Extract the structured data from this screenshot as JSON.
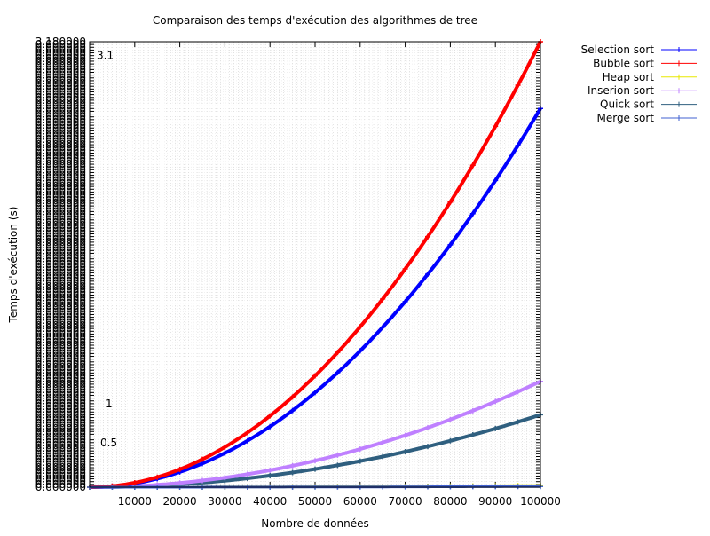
{
  "chart_data": {
    "type": "line",
    "title": "Comparaison des temps d'exécution des algorithmes de tree",
    "xlabel": "Nombre de données",
    "ylabel": "Temps d'exécution (s)",
    "xlim": [
      0,
      100000
    ],
    "ylim": [
      0,
      3.2
    ],
    "x_ticks": [
      10000,
      20000,
      30000,
      40000,
      50000,
      60000,
      70000,
      80000,
      90000,
      100000
    ],
    "y_tick_label_top": "3.180000",
    "y_tick_label_bottom": "0.000000",
    "y_annotations": [
      {
        "label": "3.1",
        "y": 3.1
      },
      {
        "label": "1",
        "y": 0.6
      },
      {
        "label": "0.5",
        "y": 0.32
      }
    ],
    "grid": true,
    "legend_position": "top-right",
    "series": [
      {
        "name": "Selection sort",
        "color": "#0000ff",
        "coef": 2.72
      },
      {
        "name": "Bubble sort",
        "color": "#ff0000",
        "coef": 3.2
      },
      {
        "name": "Heap sort",
        "color": "#e8e800",
        "coef": 0.012
      },
      {
        "name": "Inserion sort",
        "color": "#bf80ff",
        "coef": 0.76
      },
      {
        "name": "Quick sort",
        "color": "#2f5f7f",
        "coef": 0.52
      },
      {
        "name": "Merge sort",
        "color": "#4060d0",
        "coef": 0.005
      }
    ],
    "x": [
      0,
      5000,
      10000,
      15000,
      20000,
      25000,
      30000,
      35000,
      40000,
      45000,
      50000,
      55000,
      60000,
      65000,
      70000,
      75000,
      80000,
      85000,
      90000,
      95000,
      100000
    ]
  }
}
